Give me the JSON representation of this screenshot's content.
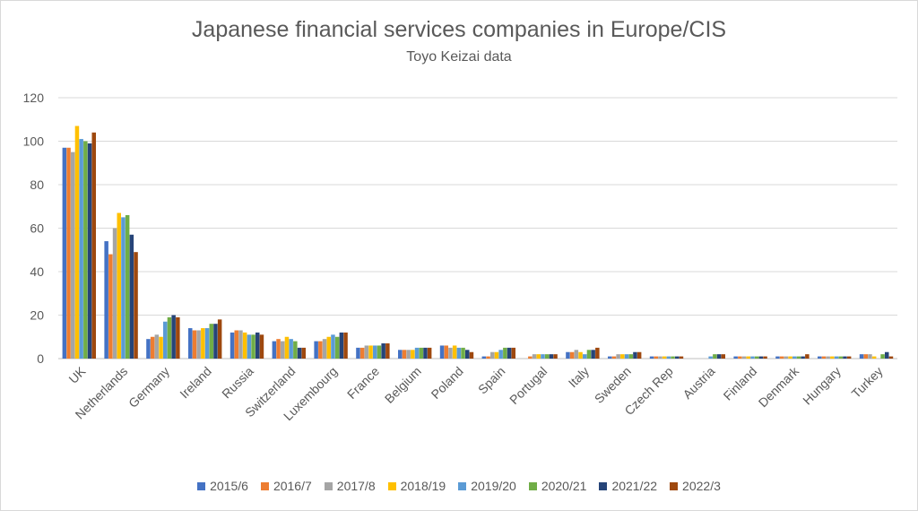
{
  "chart_data": {
    "type": "bar",
    "title": "Japanese financial services companies in Europe/CIS",
    "subtitle": "Toyo Keizai data",
    "xlabel": "",
    "ylabel": "",
    "ylim": [
      0,
      120
    ],
    "yticks": [
      0,
      20,
      40,
      60,
      80,
      100,
      120
    ],
    "grid": true,
    "legend_position": "bottom",
    "categories": [
      "UK",
      "Netherlands",
      "Germany",
      "Ireland",
      "Russia",
      "Switzerland",
      "Luxembourg",
      "France",
      "Belgium",
      "Poland",
      "Spain",
      "Portugal",
      "Italy",
      "Sweden",
      "Czech Rep",
      "Austria",
      "Finland",
      "Denmark",
      "Hungary",
      "Turkey"
    ],
    "series": [
      {
        "name": "2015/6",
        "color": "#4472c4",
        "values": [
          97,
          54,
          9,
          14,
          12,
          8,
          8,
          5,
          4,
          6,
          1,
          0,
          3,
          1,
          1,
          0,
          1,
          1,
          1,
          2
        ]
      },
      {
        "name": "2016/7",
        "color": "#ed7d31",
        "values": [
          97,
          48,
          10,
          13,
          13,
          9,
          8,
          5,
          4,
          6,
          1,
          1,
          3,
          1,
          1,
          0,
          1,
          1,
          1,
          2
        ]
      },
      {
        "name": "2017/8",
        "color": "#a5a5a5",
        "values": [
          95,
          60,
          11,
          13,
          13,
          8,
          9,
          6,
          4,
          5,
          3,
          2,
          4,
          2,
          1,
          0,
          1,
          1,
          1,
          2
        ]
      },
      {
        "name": "2018/19",
        "color": "#ffc000",
        "values": [
          107,
          67,
          10,
          14,
          12,
          10,
          10,
          6,
          4,
          6,
          3,
          2,
          3,
          2,
          1,
          0,
          1,
          1,
          1,
          1
        ]
      },
      {
        "name": "2019/20",
        "color": "#5b9bd5",
        "values": [
          101,
          65,
          17,
          14,
          11,
          9,
          11,
          6,
          5,
          5,
          4,
          2,
          2,
          2,
          1,
          1,
          1,
          1,
          1,
          0
        ]
      },
      {
        "name": "2020/21",
        "color": "#70ad47",
        "values": [
          100,
          66,
          19,
          16,
          11,
          8,
          10,
          6,
          5,
          5,
          5,
          2,
          4,
          2,
          1,
          2,
          1,
          1,
          1,
          2
        ]
      },
      {
        "name": "2021/22",
        "color": "#264478",
        "values": [
          99,
          57,
          20,
          16,
          12,
          5,
          12,
          7,
          5,
          4,
          5,
          2,
          4,
          3,
          1,
          2,
          1,
          1,
          1,
          3
        ]
      },
      {
        "name": "2022/3",
        "color": "#9e480e",
        "values": [
          104,
          49,
          19,
          18,
          11,
          5,
          12,
          7,
          5,
          3,
          5,
          2,
          5,
          3,
          1,
          2,
          1,
          2,
          1,
          1
        ]
      }
    ]
  }
}
